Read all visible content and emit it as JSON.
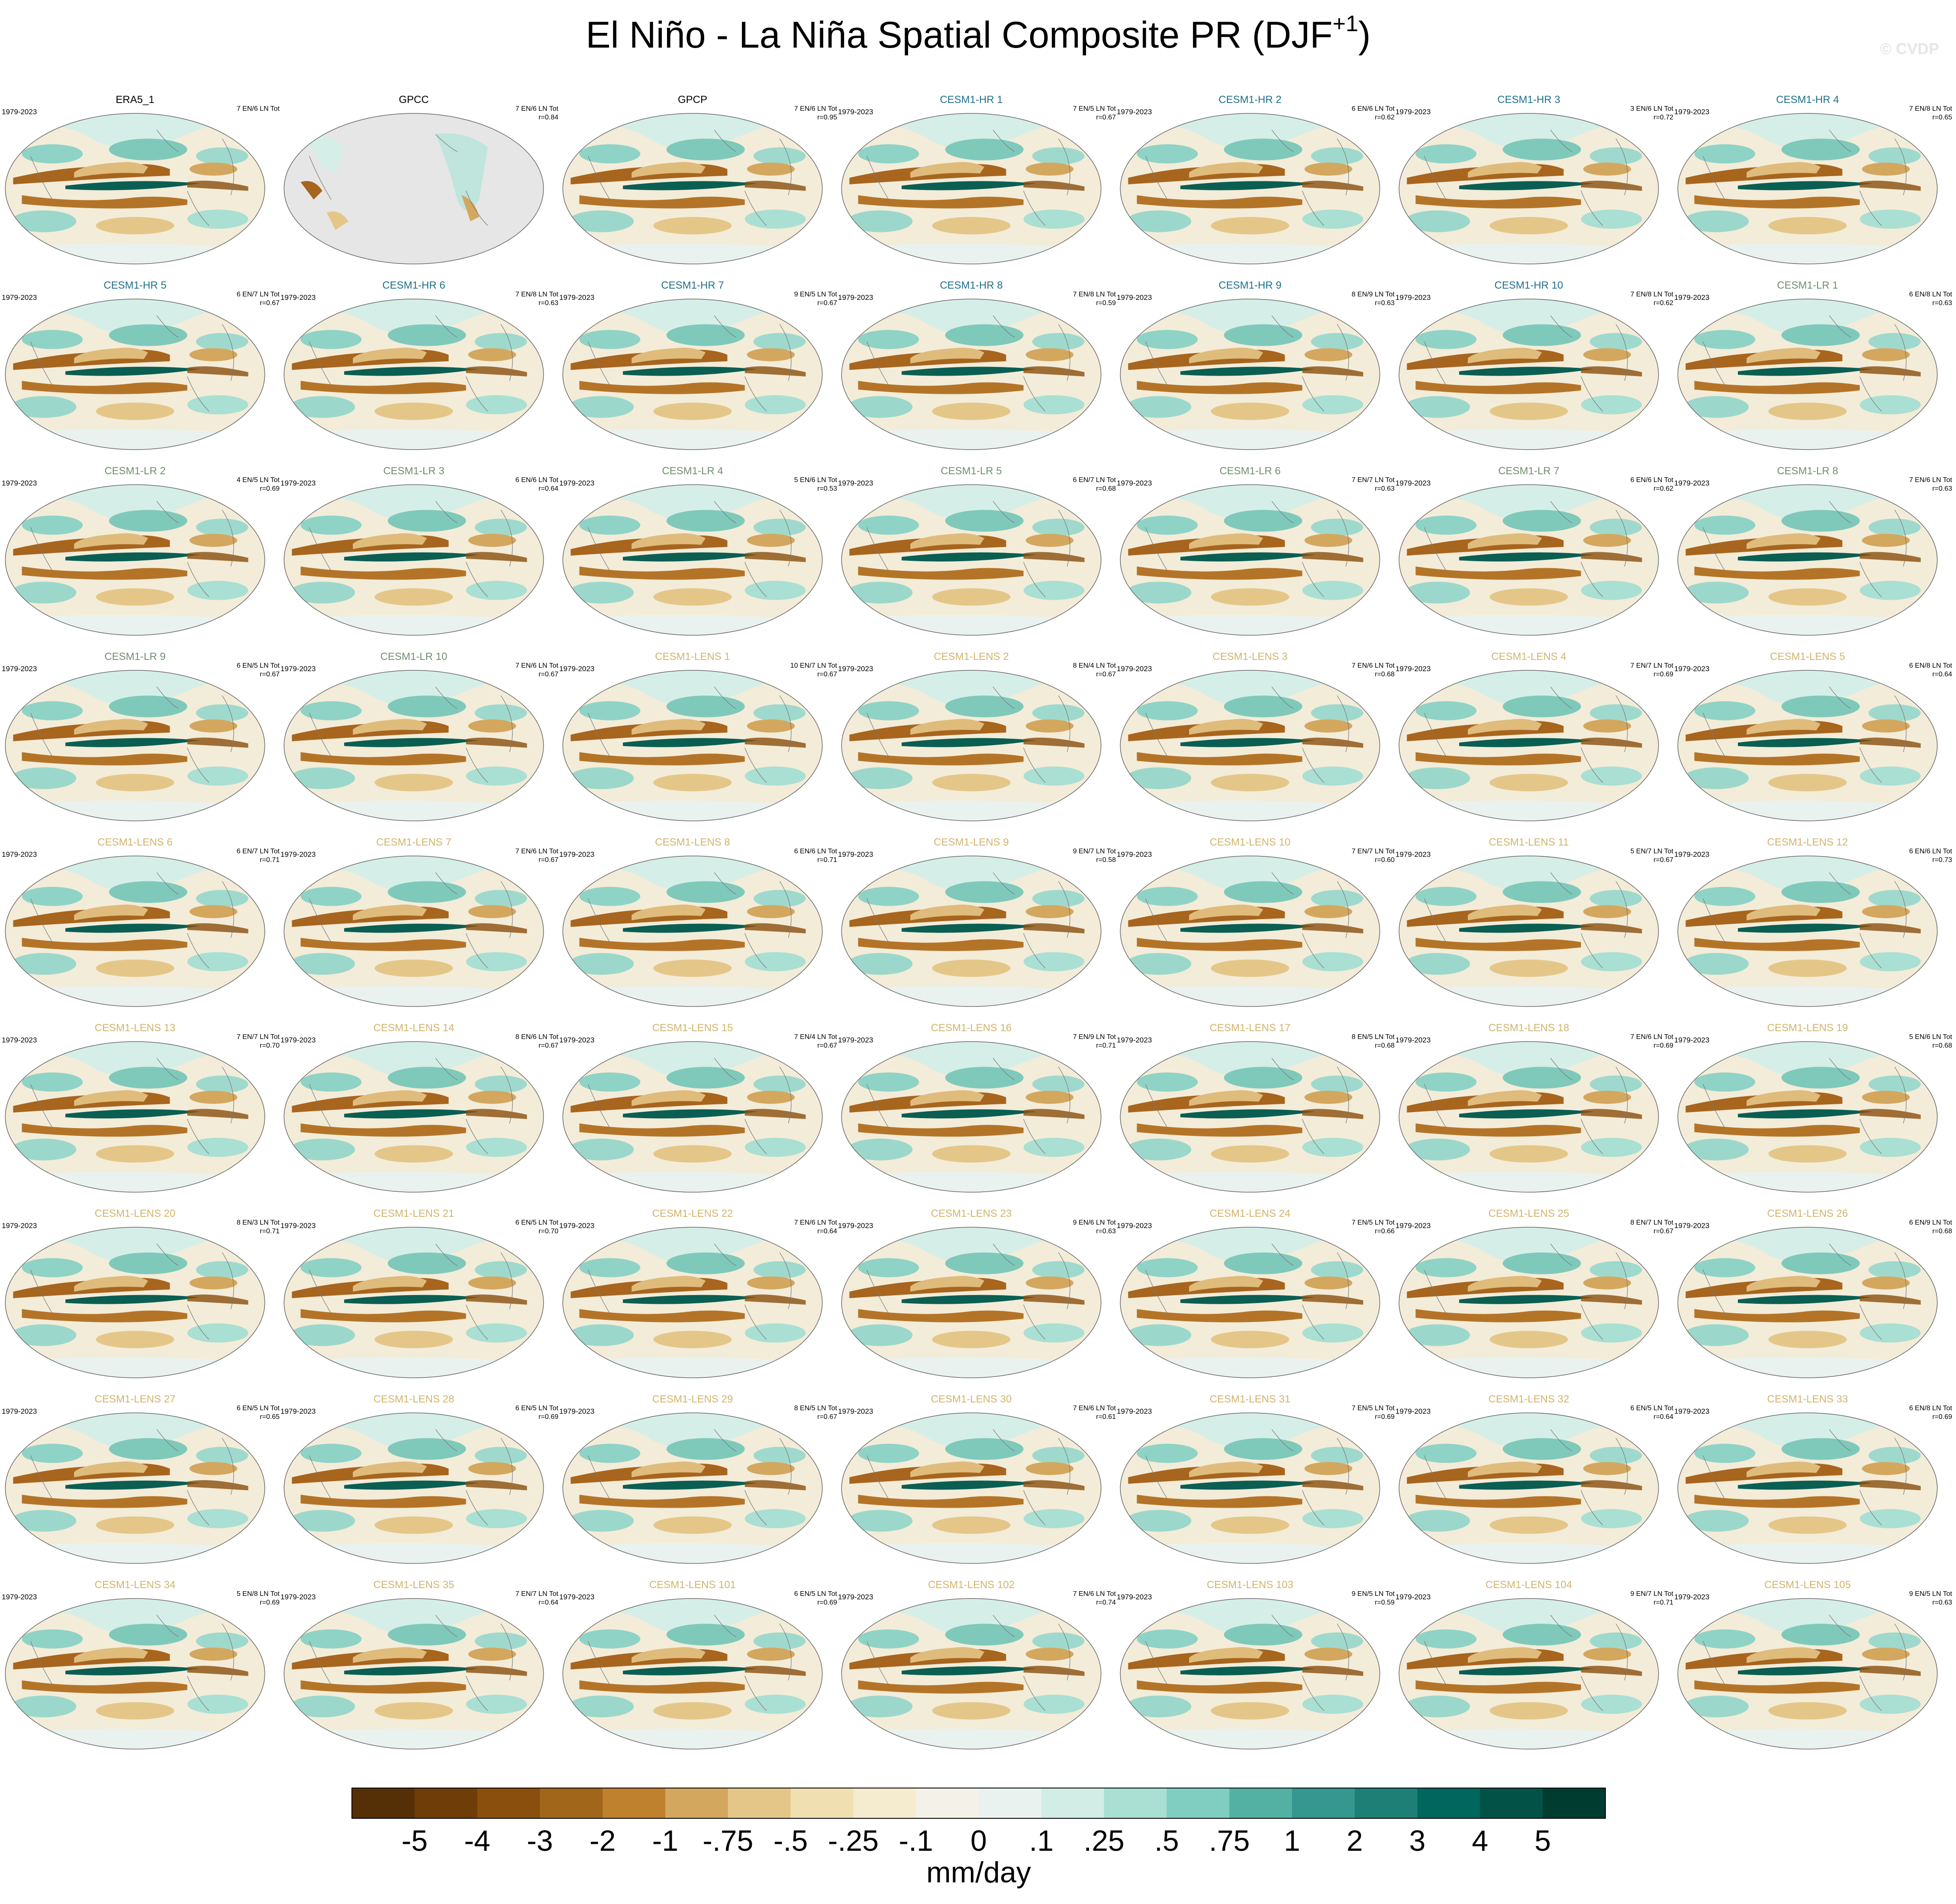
{
  "title": {
    "main": "El Niño - La Niña Spatial Composite PR (DJF",
    "sup": "+1",
    "end": ")"
  },
  "watermark": "© CVDP",
  "group_colors": {
    "obs": "#000000",
    "hr": "#1f6f8b",
    "lr": "#6f8f6f",
    "lens": "#d2b46c"
  },
  "panels": [
    {
      "name": "ERA5_1",
      "group": "obs",
      "period": "1979-2023",
      "counts": "7 EN/6 LN Tot"
    },
    {
      "name": "GPCC",
      "group": "obs",
      "counts": "7 EN/6 LN Tot",
      "r": "r=0.84"
    },
    {
      "name": "GPCP",
      "group": "obs",
      "counts": "7 EN/6 LN Tot",
      "r": "r=0.95"
    },
    {
      "name": "CESM1-HR 1",
      "group": "hr",
      "period": "1979-2023",
      "counts": "7 EN/5 LN Tot",
      "r": "r=0.67"
    },
    {
      "name": "CESM1-HR 2",
      "group": "hr",
      "period": "1979-2023",
      "counts": "6 EN/6 LN Tot",
      "r": "r=0.62"
    },
    {
      "name": "CESM1-HR 3",
      "group": "hr",
      "period": "1979-2023",
      "counts": "3 EN/6 LN Tot",
      "r": "r=0.72"
    },
    {
      "name": "CESM1-HR 4",
      "group": "hr",
      "period": "1979-2023",
      "counts": "7 EN/8 LN Tot",
      "r": "r=0.65"
    },
    {
      "name": "CESM1-HR 5",
      "group": "hr",
      "period": "1979-2023",
      "counts": "6 EN/7 LN Tot",
      "r": "r=0.67"
    },
    {
      "name": "CESM1-HR 6",
      "group": "hr",
      "period": "1979-2023",
      "counts": "7 EN/8 LN Tot",
      "r": "r=0.63"
    },
    {
      "name": "CESM1-HR 7",
      "group": "hr",
      "period": "1979-2023",
      "counts": "9 EN/5 LN Tot",
      "r": "r=0.67"
    },
    {
      "name": "CESM1-HR 8",
      "group": "hr",
      "period": "1979-2023",
      "counts": "7 EN/8 LN Tot",
      "r": "r=0.59"
    },
    {
      "name": "CESM1-HR 9",
      "group": "hr",
      "period": "1979-2023",
      "counts": "8 EN/9 LN Tot",
      "r": "r=0.63"
    },
    {
      "name": "CESM1-HR 10",
      "group": "hr",
      "period": "1979-2023",
      "counts": "7 EN/8 LN Tot",
      "r": "r=0.62"
    },
    {
      "name": "CESM1-LR 1",
      "group": "lr",
      "period": "1979-2023",
      "counts": "6 EN/8 LN Tot",
      "r": "r=0.63"
    },
    {
      "name": "CESM1-LR 2",
      "group": "lr",
      "period": "1979-2023",
      "counts": "4 EN/5 LN Tot",
      "r": "r=0.69"
    },
    {
      "name": "CESM1-LR 3",
      "group": "lr",
      "period": "1979-2023",
      "counts": "6 EN/6 LN Tot",
      "r": "r=0.64"
    },
    {
      "name": "CESM1-LR 4",
      "group": "lr",
      "period": "1979-2023",
      "counts": "5 EN/6 LN Tot",
      "r": "r=0.53"
    },
    {
      "name": "CESM1-LR 5",
      "group": "lr",
      "period": "1979-2023",
      "counts": "6 EN/7 LN Tot",
      "r": "r=0.68"
    },
    {
      "name": "CESM1-LR 6",
      "group": "lr",
      "period": "1979-2023",
      "counts": "7 EN/7 LN Tot",
      "r": "r=0.63"
    },
    {
      "name": "CESM1-LR 7",
      "group": "lr",
      "period": "1979-2023",
      "counts": "6 EN/6 LN Tot",
      "r": "r=0.62"
    },
    {
      "name": "CESM1-LR 8",
      "group": "lr",
      "period": "1979-2023",
      "counts": "7 EN/6 LN Tot",
      "r": "r=0.63"
    },
    {
      "name": "CESM1-LR 9",
      "group": "lr",
      "period": "1979-2023",
      "counts": "6 EN/5 LN Tot",
      "r": "r=0.67"
    },
    {
      "name": "CESM1-LR 10",
      "group": "lr",
      "period": "1979-2023",
      "counts": "7 EN/6 LN Tot",
      "r": "r=0.67"
    },
    {
      "name": "CESM1-LENS 1",
      "group": "lens",
      "period": "1979-2023",
      "counts": "10 EN/7 LN Tot",
      "r": "r=0.67"
    },
    {
      "name": "CESM1-LENS 2",
      "group": "lens",
      "period": "1979-2023",
      "counts": "8 EN/4 LN Tot",
      "r": "r=0.67"
    },
    {
      "name": "CESM1-LENS 3",
      "group": "lens",
      "period": "1979-2023",
      "counts": "7 EN/6 LN Tot",
      "r": "r=0.68"
    },
    {
      "name": "CESM1-LENS 4",
      "group": "lens",
      "period": "1979-2023",
      "counts": "7 EN/7 LN Tot",
      "r": "r=0.69"
    },
    {
      "name": "CESM1-LENS 5",
      "group": "lens",
      "period": "1979-2023",
      "counts": "6 EN/8 LN Tot",
      "r": "r=0.64"
    },
    {
      "name": "CESM1-LENS 6",
      "group": "lens",
      "period": "1979-2023",
      "counts": "6 EN/7 LN Tot",
      "r": "r=0.71"
    },
    {
      "name": "CESM1-LENS 7",
      "group": "lens",
      "period": "1979-2023",
      "counts": "7 EN/6 LN Tot",
      "r": "r=0.67"
    },
    {
      "name": "CESM1-LENS 8",
      "group": "lens",
      "period": "1979-2023",
      "counts": "6 EN/6 LN Tot",
      "r": "r=0.71"
    },
    {
      "name": "CESM1-LENS 9",
      "group": "lens",
      "period": "1979-2023",
      "counts": "9 EN/7 LN Tot",
      "r": "r=0.58"
    },
    {
      "name": "CESM1-LENS 10",
      "group": "lens",
      "period": "1979-2023",
      "counts": "7 EN/7 LN Tot",
      "r": "r=0.60"
    },
    {
      "name": "CESM1-LENS 11",
      "group": "lens",
      "period": "1979-2023",
      "counts": "5 EN/7 LN Tot",
      "r": "r=0.67"
    },
    {
      "name": "CESM1-LENS 12",
      "group": "lens",
      "period": "1979-2023",
      "counts": "6 EN/6 LN Tot",
      "r": "r=0.73"
    },
    {
      "name": "CESM1-LENS 13",
      "group": "lens",
      "period": "1979-2023",
      "counts": "7 EN/7 LN Tot",
      "r": "r=0.70"
    },
    {
      "name": "CESM1-LENS 14",
      "group": "lens",
      "period": "1979-2023",
      "counts": "8 EN/6 LN Tot",
      "r": "r=0.67"
    },
    {
      "name": "CESM1-LENS 15",
      "group": "lens",
      "period": "1979-2023",
      "counts": "7 EN/4 LN Tot",
      "r": "r=0.67"
    },
    {
      "name": "CESM1-LENS 16",
      "group": "lens",
      "period": "1979-2023",
      "counts": "7 EN/9 LN Tot",
      "r": "r=0.71"
    },
    {
      "name": "CESM1-LENS 17",
      "group": "lens",
      "period": "1979-2023",
      "counts": "8 EN/5 LN Tot",
      "r": "r=0.68"
    },
    {
      "name": "CESM1-LENS 18",
      "group": "lens",
      "period": "1979-2023",
      "counts": "7 EN/6 LN Tot",
      "r": "r=0.69"
    },
    {
      "name": "CESM1-LENS 19",
      "group": "lens",
      "period": "1979-2023",
      "counts": "5 EN/6 LN Tot",
      "r": "r=0.68"
    },
    {
      "name": "CESM1-LENS 20",
      "group": "lens",
      "period": "1979-2023",
      "counts": "8 EN/3 LN Tot",
      "r": "r=0.71"
    },
    {
      "name": "CESM1-LENS 21",
      "group": "lens",
      "period": "1979-2023",
      "counts": "6 EN/5 LN Tot",
      "r": "r=0.70"
    },
    {
      "name": "CESM1-LENS 22",
      "group": "lens",
      "period": "1979-2023",
      "counts": "7 EN/6 LN Tot",
      "r": "r=0.64"
    },
    {
      "name": "CESM1-LENS 23",
      "group": "lens",
      "period": "1979-2023",
      "counts": "9 EN/6 LN Tot",
      "r": "r=0.63"
    },
    {
      "name": "CESM1-LENS 24",
      "group": "lens",
      "period": "1979-2023",
      "counts": "7 EN/5 LN Tot",
      "r": "r=0.66"
    },
    {
      "name": "CESM1-LENS 25",
      "group": "lens",
      "period": "1979-2023",
      "counts": "8 EN/7 LN Tot",
      "r": "r=0.67"
    },
    {
      "name": "CESM1-LENS 26",
      "group": "lens",
      "period": "1979-2023",
      "counts": "6 EN/9 LN Tot",
      "r": "r=0.68"
    },
    {
      "name": "CESM1-LENS 27",
      "group": "lens",
      "period": "1979-2023",
      "counts": "6 EN/5 LN Tot",
      "r": "r=0.65"
    },
    {
      "name": "CESM1-LENS 28",
      "group": "lens",
      "period": "1979-2023",
      "counts": "6 EN/5 LN Tot",
      "r": "r=0.69"
    },
    {
      "name": "CESM1-LENS 29",
      "group": "lens",
      "period": "1979-2023",
      "counts": "8 EN/5 LN Tot",
      "r": "r=0.67"
    },
    {
      "name": "CESM1-LENS 30",
      "group": "lens",
      "period": "1979-2023",
      "counts": "7 EN/6 LN Tot",
      "r": "r=0.61"
    },
    {
      "name": "CESM1-LENS 31",
      "group": "lens",
      "period": "1979-2023",
      "counts": "7 EN/5 LN Tot",
      "r": "r=0.69"
    },
    {
      "name": "CESM1-LENS 32",
      "group": "lens",
      "period": "1979-2023",
      "counts": "6 EN/5 LN Tot",
      "r": "r=0.64"
    },
    {
      "name": "CESM1-LENS 33",
      "group": "lens",
      "period": "1979-2023",
      "counts": "6 EN/8 LN Tot",
      "r": "r=0.69"
    },
    {
      "name": "CESM1-LENS 34",
      "group": "lens",
      "period": "1979-2023",
      "counts": "5 EN/8 LN Tot",
      "r": "r=0.69"
    },
    {
      "name": "CESM1-LENS 35",
      "group": "lens",
      "period": "1979-2023",
      "counts": "7 EN/7 LN Tot",
      "r": "r=0.64"
    },
    {
      "name": "CESM1-LENS 101",
      "group": "lens",
      "period": "1979-2023",
      "counts": "6 EN/5 LN Tot",
      "r": "r=0.69"
    },
    {
      "name": "CESM1-LENS 102",
      "group": "lens",
      "period": "1979-2023",
      "counts": "7 EN/6 LN Tot",
      "r": "r=0.74"
    },
    {
      "name": "CESM1-LENS 103",
      "group": "lens",
      "period": "1979-2023",
      "counts": "9 EN/5 LN Tot",
      "r": "r=0.59"
    },
    {
      "name": "CESM1-LENS 104",
      "group": "lens",
      "period": "1979-2023",
      "counts": "9 EN/7 LN Tot",
      "r": "r=0.71"
    },
    {
      "name": "CESM1-LENS 105",
      "group": "lens",
      "period": "1979-2023",
      "counts": "9 EN/5 LN Tot",
      "r": "r=0.63"
    }
  ],
  "colorbar": {
    "colors": [
      "#553006",
      "#6e3d08",
      "#8a4f0c",
      "#a2661b",
      "#bf812d",
      "#d4a75e",
      "#e4c788",
      "#f0dfb0",
      "#f5ebcf",
      "#f4f1e8",
      "#eaf2ef",
      "#d2ece6",
      "#aadfd3",
      "#80cdc1",
      "#52b1a3",
      "#35978f",
      "#1d7f75",
      "#01665e",
      "#035248",
      "#003c30"
    ],
    "labels": [
      "-5",
      "-4",
      "-3",
      "-2",
      "-1",
      "-.75",
      "-.5",
      "-.25",
      "-.1",
      "0",
      ".1",
      ".25",
      ".5",
      ".75",
      "1",
      "2",
      "3",
      "4",
      "5"
    ],
    "unit": "mm/day"
  }
}
